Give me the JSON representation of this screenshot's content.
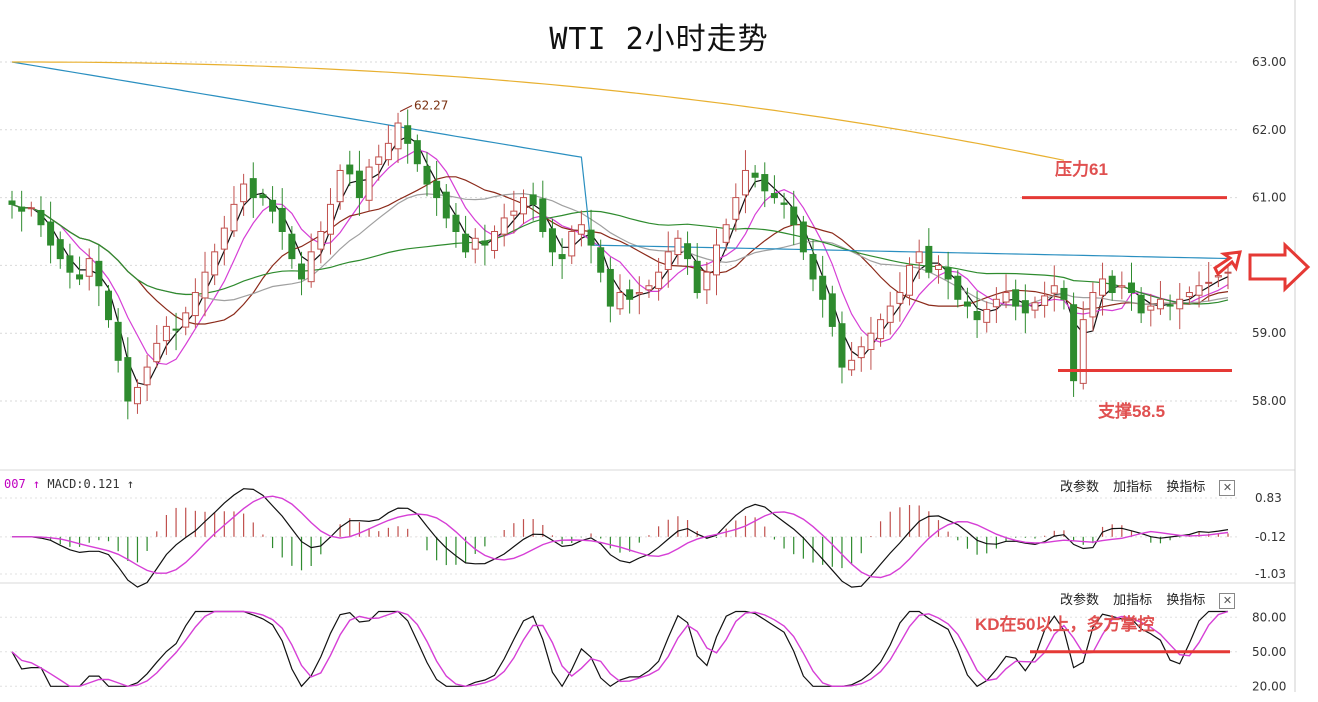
{
  "title": "WTI 2小时走势",
  "macd_header": {
    "prefix": "007",
    "label": "MACD:0.121"
  },
  "panel_buttons": [
    "改参数",
    "加指标",
    "换指标"
  ],
  "annotations": {
    "resistance": "压力61",
    "support": "支撑58.5",
    "kd_note": "KD在50以上，多方掌控",
    "high_label": "62.27"
  },
  "colors": {
    "up": "#c0504d",
    "down": "#2e8b2e",
    "ma_black": "#111111",
    "ma_magenta": "#d63fd6",
    "ma_brown": "#8b2a1a",
    "ma_gray": "#a0a0a0",
    "ma_green": "#2e8b2e",
    "ma_blue": "#2a8fc0",
    "ma_orange": "#e8b030",
    "annotation": "#e53935"
  },
  "chart_data": [
    {
      "type": "candlestick",
      "name": "price",
      "y_ticks": [
        "63.00",
        "62.00",
        "61.00",
        "60.00",
        "59.00",
        "58.00"
      ],
      "ylim": [
        57.5,
        63.3
      ],
      "resistance": 61.0,
      "support": 58.45,
      "marked_high": 62.27,
      "closes": [
        60.9,
        60.8,
        60.85,
        60.6,
        60.3,
        60.1,
        59.9,
        59.8,
        60.1,
        59.7,
        59.2,
        58.6,
        58.0,
        58.2,
        58.5,
        58.85,
        59.1,
        59.05,
        59.3,
        59.6,
        59.9,
        60.2,
        60.55,
        60.9,
        61.2,
        61.0,
        61.0,
        60.8,
        60.5,
        60.1,
        59.8,
        60.2,
        60.5,
        60.9,
        61.4,
        61.35,
        61.0,
        61.45,
        61.6,
        61.8,
        62.1,
        61.8,
        61.5,
        61.2,
        61.0,
        60.7,
        60.5,
        60.2,
        60.4,
        60.3,
        60.5,
        60.7,
        60.8,
        61.0,
        60.9,
        60.5,
        60.2,
        60.1,
        60.5,
        60.6,
        60.3,
        59.9,
        59.4,
        59.6,
        59.5,
        59.6,
        59.7,
        59.9,
        60.2,
        60.4,
        60.1,
        59.6,
        59.9,
        60.3,
        60.6,
        61.0,
        61.4,
        61.3,
        61.1,
        61.0,
        60.9,
        60.6,
        60.2,
        59.8,
        59.5,
        59.1,
        58.5,
        58.6,
        58.8,
        59.0,
        59.2,
        59.4,
        59.6,
        60.0,
        60.2,
        59.9,
        60.0,
        59.8,
        59.5,
        59.4,
        59.2,
        59.35,
        59.5,
        59.6,
        59.4,
        59.3,
        59.45,
        59.55,
        59.7,
        59.5,
        58.3,
        59.2,
        59.6,
        59.8,
        59.6,
        59.7,
        59.6,
        59.3,
        59.4,
        59.5,
        59.4,
        59.5,
        59.6,
        59.7,
        59.75,
        59.85,
        59.9
      ],
      "ma_ylim_note": "moving averages drawn in same price scale"
    },
    {
      "type": "macd",
      "name": "MACD",
      "value": 0.121,
      "y_ticks": [
        "0.83",
        "-0.12",
        "-1.03"
      ],
      "ylim": [
        -1.03,
        0.83
      ]
    },
    {
      "type": "line",
      "name": "KD",
      "y_ticks": [
        "80.00",
        "50.00",
        "20.00"
      ],
      "ylim": [
        15,
        95
      ],
      "reference": 50
    }
  ]
}
